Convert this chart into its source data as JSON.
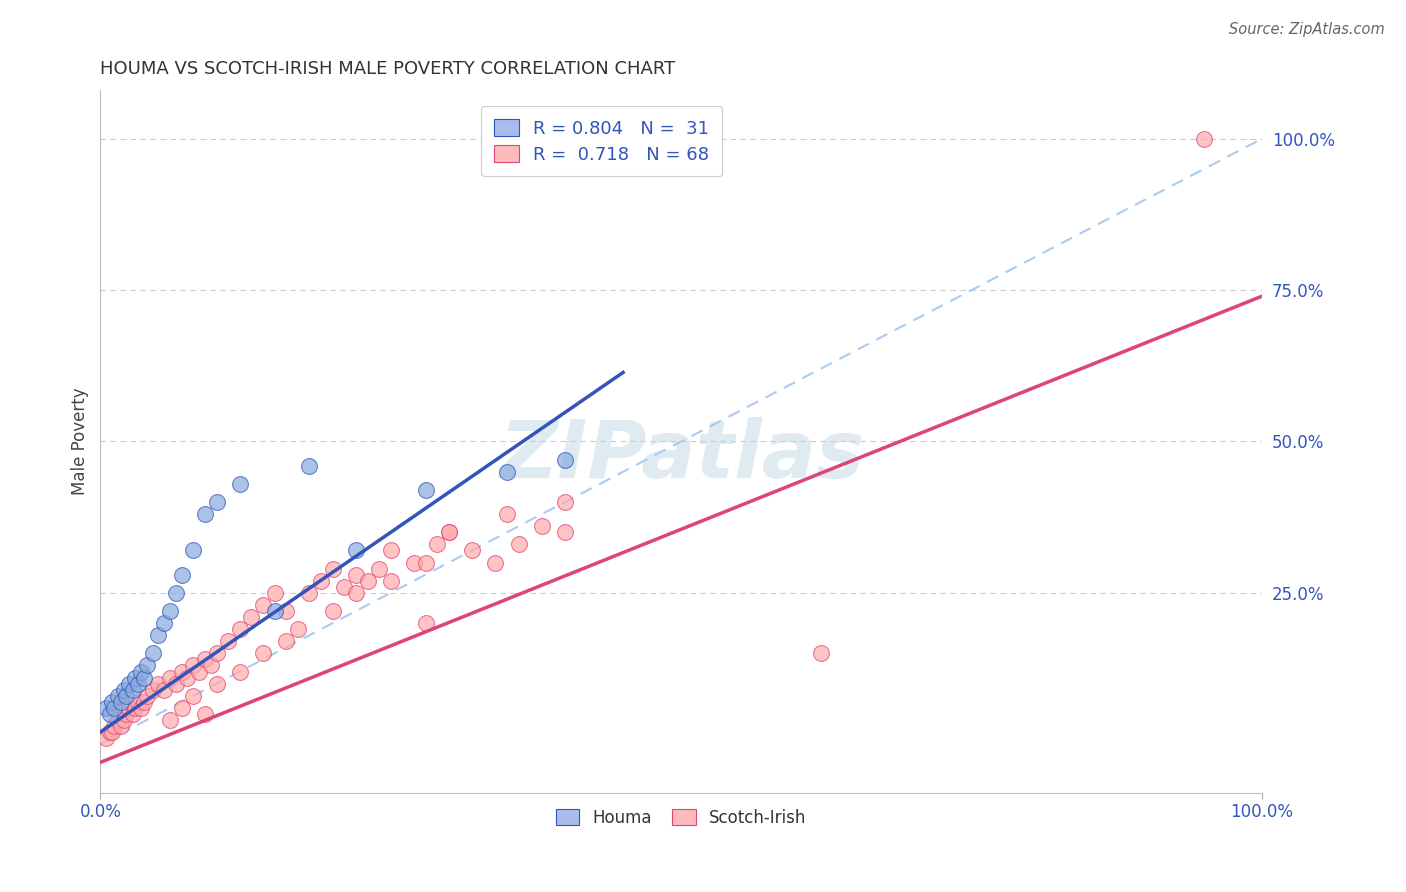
{
  "title": "HOUMA VS SCOTCH-IRISH MALE POVERTY CORRELATION CHART",
  "source": "Source: ZipAtlas.com",
  "ylabel": "Male Poverty",
  "ytick_labels": [
    "25.0%",
    "50.0%",
    "75.0%",
    "100.0%"
  ],
  "ytick_positions": [
    0.25,
    0.5,
    0.75,
    1.0
  ],
  "xmin": 0.0,
  "xmax": 1.0,
  "ymin": -0.08,
  "ymax": 1.08,
  "houma_color": "#88AADD",
  "scotch_color": "#FFAAAA",
  "houma_R": 0.804,
  "houma_N": 31,
  "scotch_R": 0.718,
  "scotch_N": 68,
  "houma_line_color": "#3355BB",
  "scotch_line_color": "#DD4477",
  "diag_line_color": "#AACCEE",
  "houma_line_slope": 1.32,
  "houma_line_intercept": 0.02,
  "scotch_line_slope": 0.77,
  "scotch_line_intercept": -0.03,
  "houma_x": [
    0.005,
    0.008,
    0.01,
    0.012,
    0.015,
    0.018,
    0.02,
    0.022,
    0.025,
    0.028,
    0.03,
    0.032,
    0.035,
    0.038,
    0.04,
    0.045,
    0.05,
    0.055,
    0.06,
    0.065,
    0.07,
    0.08,
    0.09,
    0.1,
    0.12,
    0.15,
    0.18,
    0.22,
    0.28,
    0.35,
    0.4
  ],
  "houma_y": [
    0.06,
    0.05,
    0.07,
    0.06,
    0.08,
    0.07,
    0.09,
    0.08,
    0.1,
    0.09,
    0.11,
    0.1,
    0.12,
    0.11,
    0.13,
    0.15,
    0.18,
    0.2,
    0.22,
    0.25,
    0.28,
    0.32,
    0.38,
    0.4,
    0.43,
    0.22,
    0.46,
    0.32,
    0.42,
    0.45,
    0.47
  ],
  "scotch_x": [
    0.005,
    0.008,
    0.01,
    0.012,
    0.015,
    0.018,
    0.02,
    0.022,
    0.025,
    0.028,
    0.03,
    0.032,
    0.035,
    0.038,
    0.04,
    0.045,
    0.05,
    0.055,
    0.06,
    0.065,
    0.07,
    0.075,
    0.08,
    0.085,
    0.09,
    0.095,
    0.1,
    0.11,
    0.12,
    0.13,
    0.14,
    0.15,
    0.16,
    0.17,
    0.18,
    0.19,
    0.2,
    0.21,
    0.22,
    0.23,
    0.24,
    0.25,
    0.27,
    0.29,
    0.3,
    0.32,
    0.34,
    0.36,
    0.38,
    0.4,
    0.06,
    0.07,
    0.08,
    0.09,
    0.1,
    0.12,
    0.14,
    0.16,
    0.2,
    0.22,
    0.25,
    0.28,
    0.3,
    0.35,
    0.62,
    0.28,
    0.95,
    0.4
  ],
  "scotch_y": [
    0.01,
    0.02,
    0.02,
    0.03,
    0.04,
    0.03,
    0.04,
    0.05,
    0.06,
    0.05,
    0.06,
    0.07,
    0.06,
    0.07,
    0.08,
    0.09,
    0.1,
    0.09,
    0.11,
    0.1,
    0.12,
    0.11,
    0.13,
    0.12,
    0.14,
    0.13,
    0.15,
    0.17,
    0.19,
    0.21,
    0.23,
    0.25,
    0.22,
    0.19,
    0.25,
    0.27,
    0.29,
    0.26,
    0.28,
    0.27,
    0.29,
    0.32,
    0.3,
    0.33,
    0.35,
    0.32,
    0.3,
    0.33,
    0.36,
    0.35,
    0.04,
    0.06,
    0.08,
    0.05,
    0.1,
    0.12,
    0.15,
    0.17,
    0.22,
    0.25,
    0.27,
    0.3,
    0.35,
    0.38,
    0.15,
    0.2,
    1.0,
    0.4
  ],
  "legend_houma_color": "#AABBEE",
  "legend_scotch_color": "#FFBBBB"
}
